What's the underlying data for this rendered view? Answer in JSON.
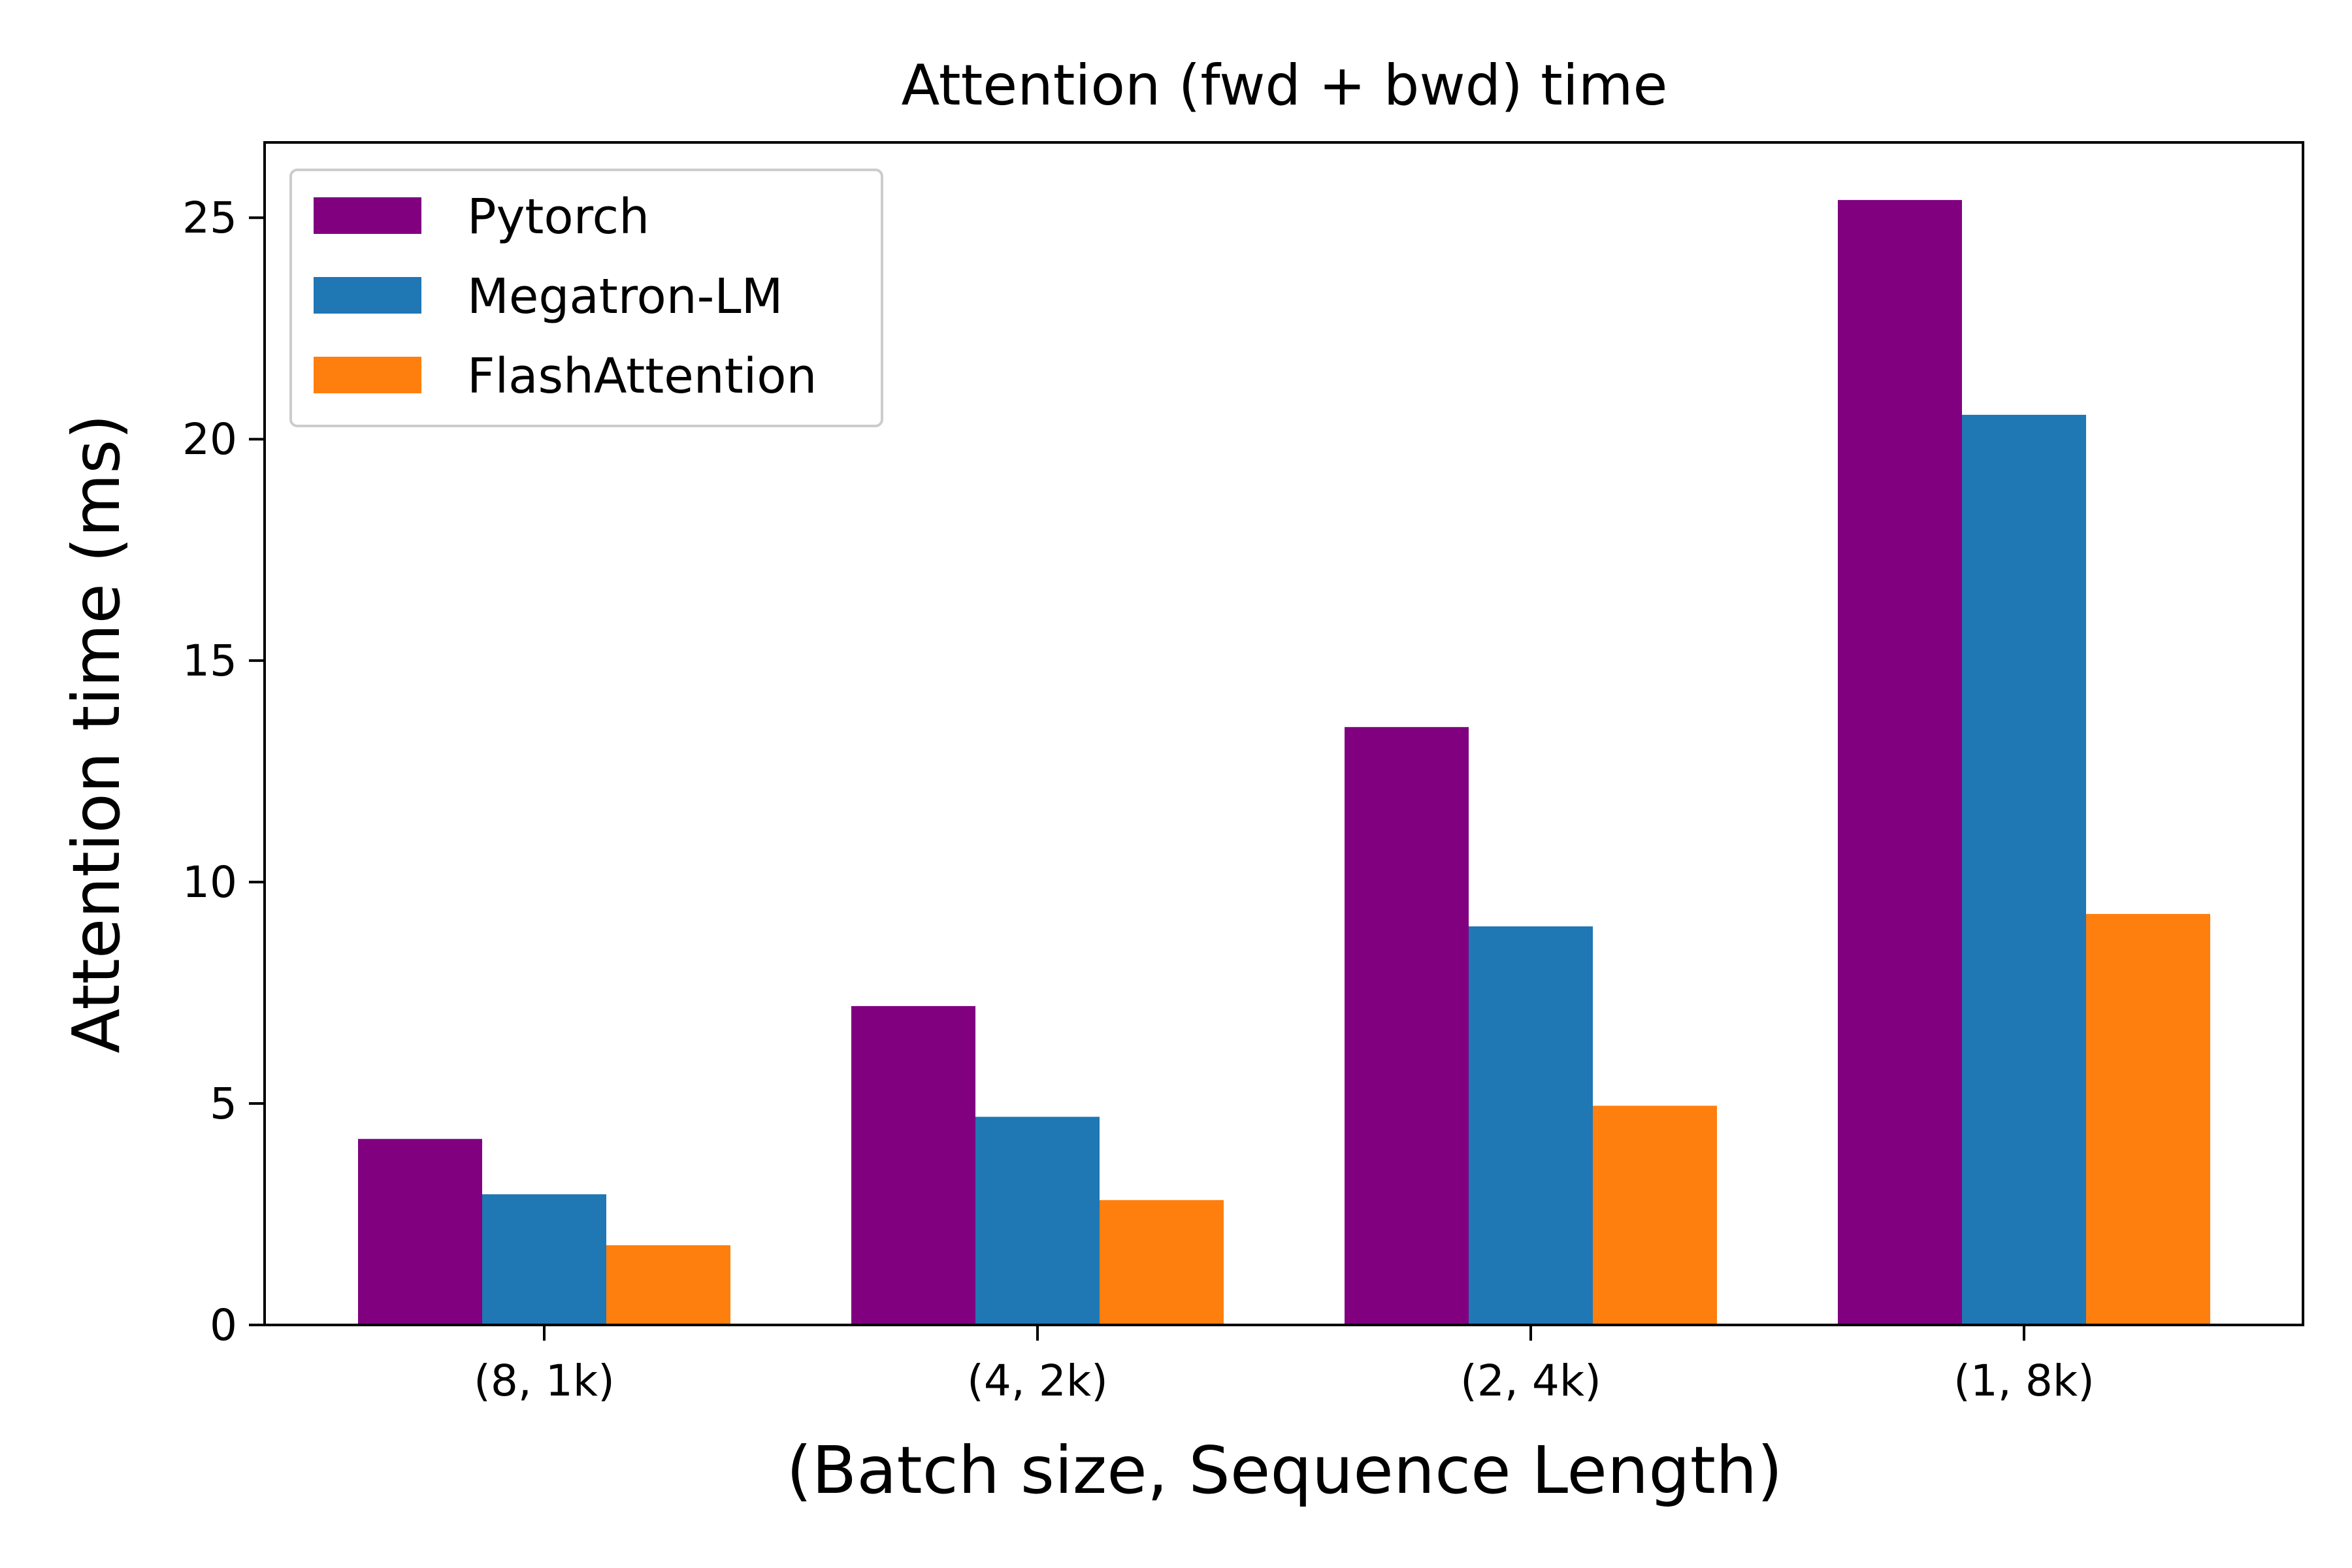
{
  "chart_data": {
    "type": "bar",
    "title": "Attention (fwd + bwd) time",
    "xlabel": "(Batch size, Sequence Length)",
    "ylabel": "Attention time (ms)",
    "categories": [
      "(8, 1k)",
      "(4, 2k)",
      "(2, 4k)",
      "(1, 8k)"
    ],
    "series": [
      {
        "name": "Pytorch",
        "color": "#800080",
        "values": [
          4.2,
          7.2,
          13.5,
          25.4
        ]
      },
      {
        "name": "Megatron-LM",
        "color": "#1f77b4",
        "values": [
          2.95,
          4.7,
          9.0,
          20.55
        ]
      },
      {
        "name": "FlashAttention",
        "color": "#ff7f0e",
        "values": [
          1.8,
          2.82,
          4.95,
          9.28
        ]
      }
    ],
    "ylim": [
      0,
      26.7
    ],
    "yticks": [
      0,
      5,
      10,
      15,
      20,
      25
    ],
    "grid": false,
    "legend": "top-left"
  }
}
